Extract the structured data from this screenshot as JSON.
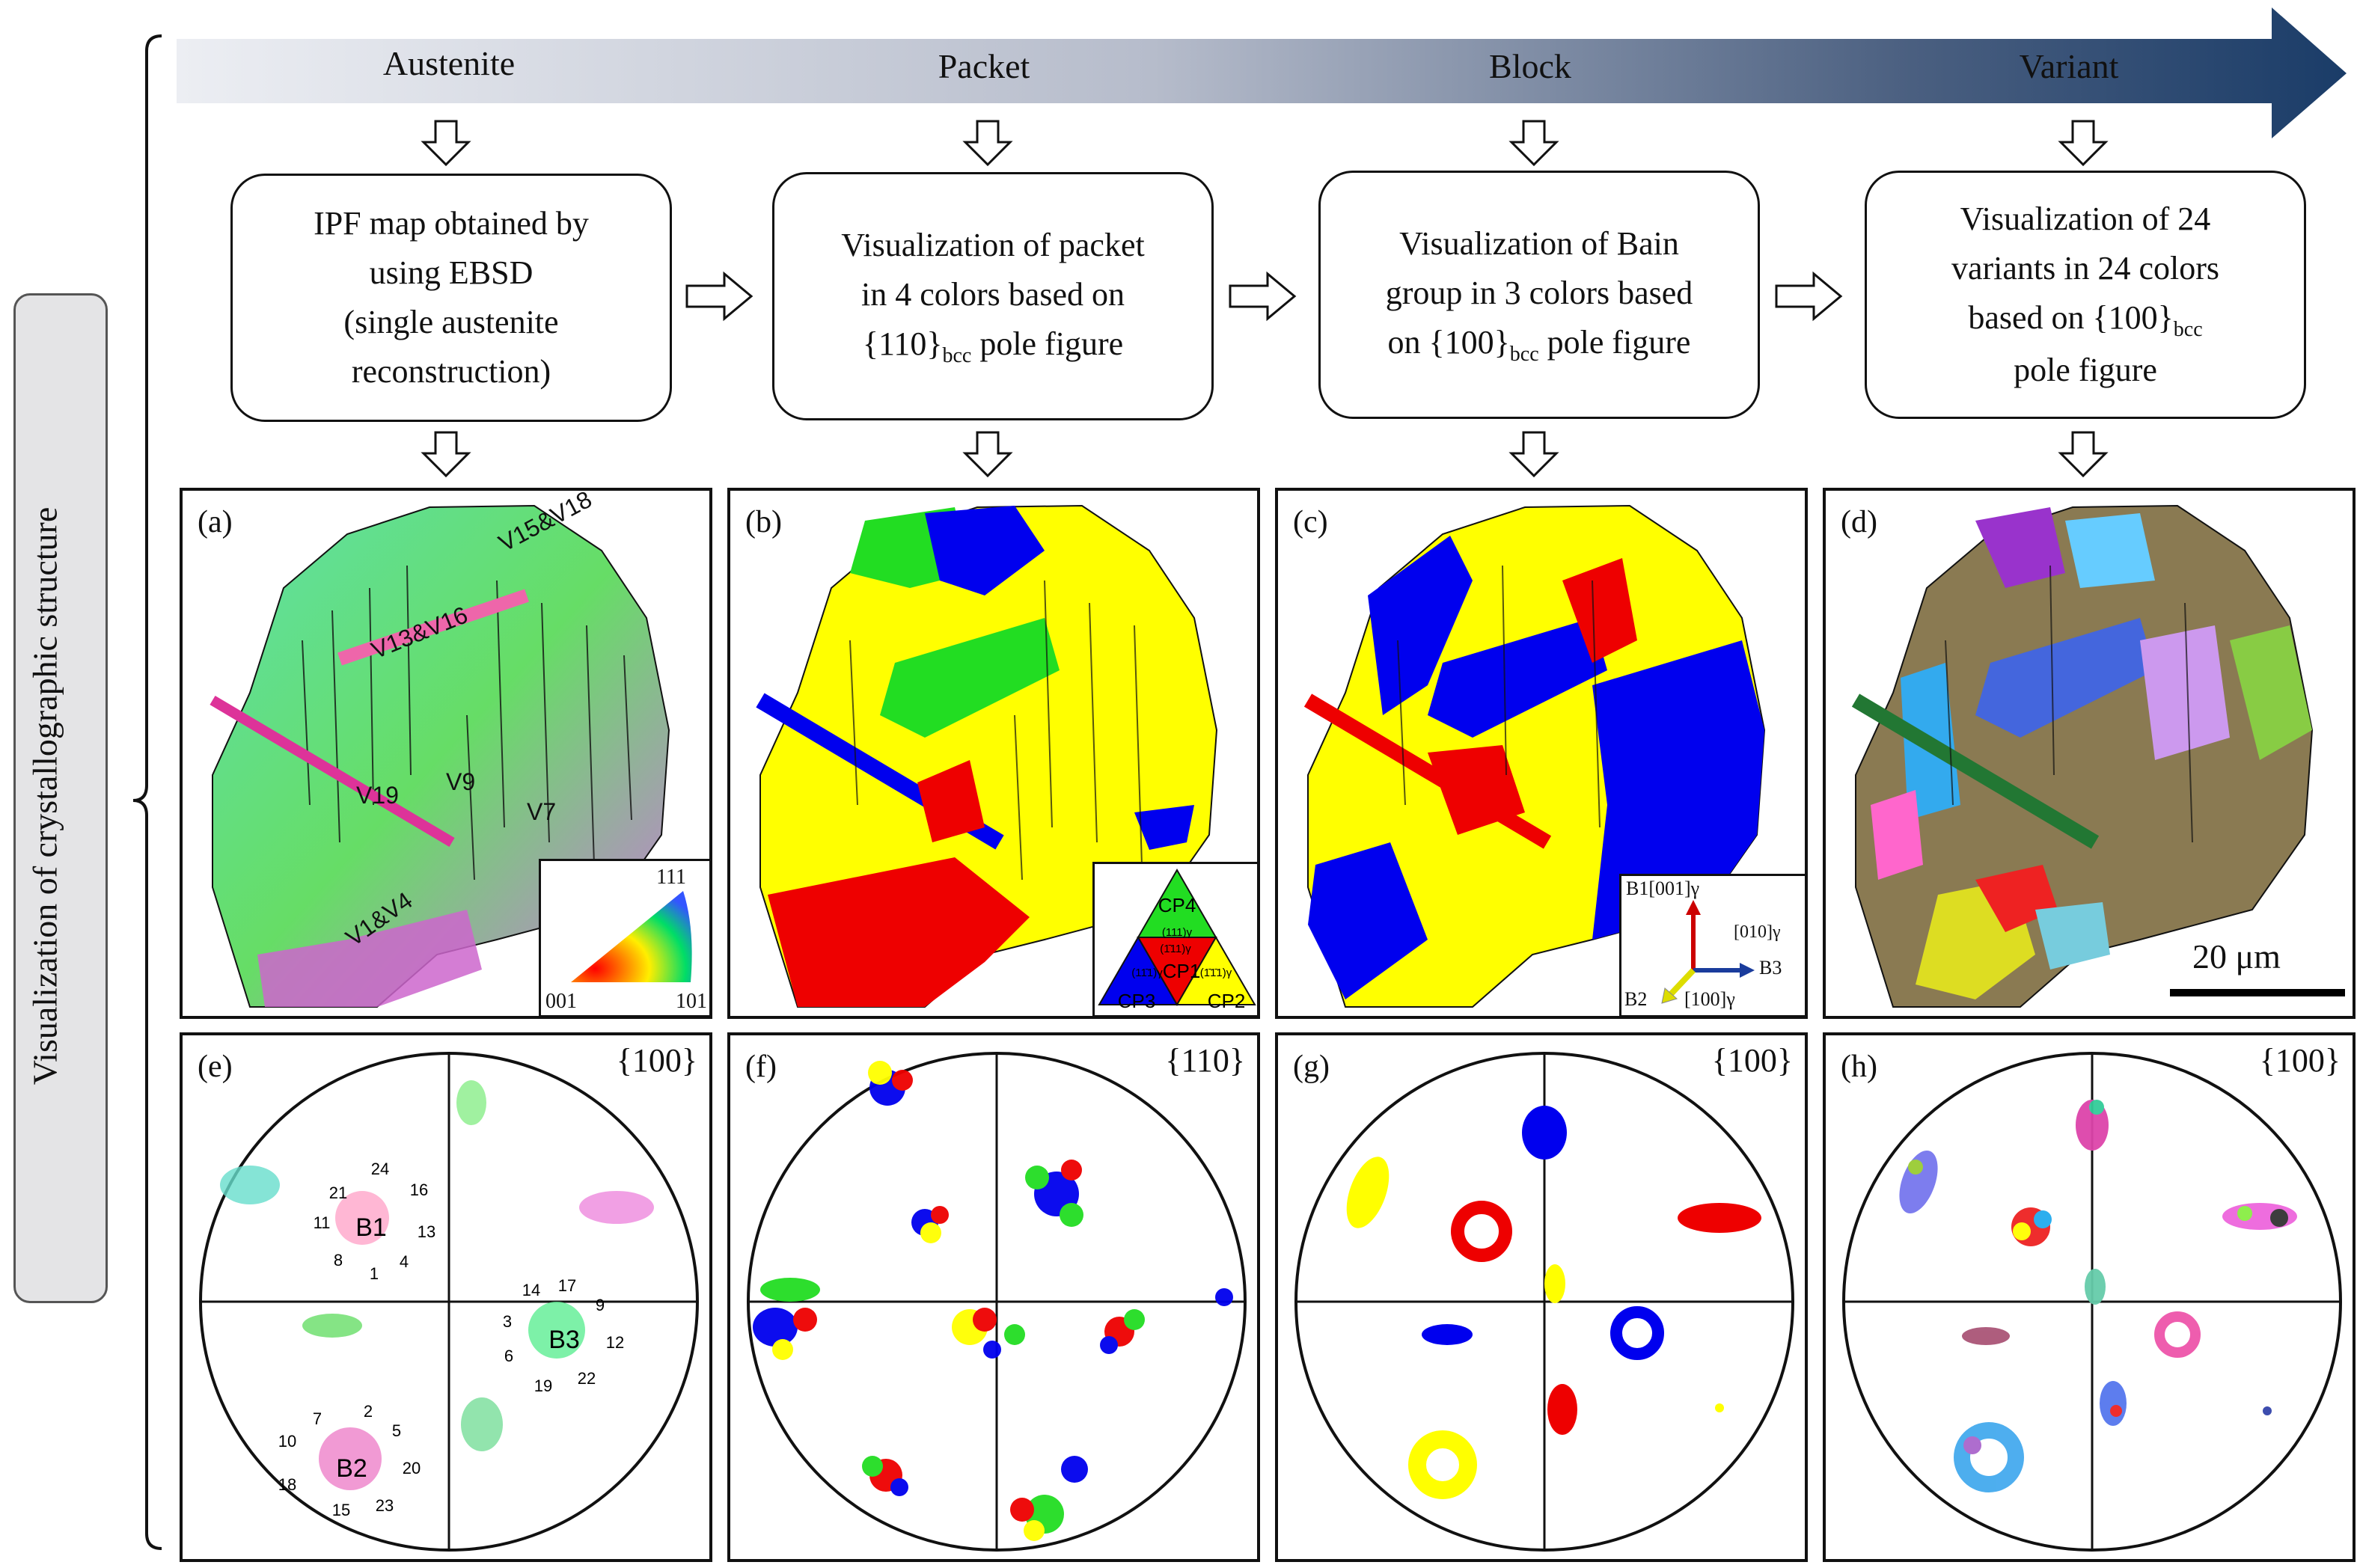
{
  "side_label": "Visualization of  crystallographic structure",
  "stages": [
    "Austenite",
    "Packet",
    "Block",
    "Variant"
  ],
  "boxes": [
    {
      "lines": [
        "IPF map obtained by",
        "using EBSD",
        "(single austenite",
        "reconstruction)"
      ]
    },
    {
      "lines": [
        "Visualization of packet",
        "in 4 colors based on"
      ],
      "brace": "{110}",
      "sub": "bcc",
      "tail": " pole figure"
    },
    {
      "lines": [
        "Visualization of Bain",
        "group in 3 colors based"
      ],
      "prefix": "on ",
      "brace": "{100}",
      "sub": "bcc",
      "tail": " pole figure"
    },
    {
      "lines": [
        "Visualization of 24",
        "variants in 24 colors"
      ],
      "prefix": "based on ",
      "brace": "{100}",
      "sub": "bcc",
      "line4": "pole figure"
    }
  ],
  "panels": {
    "a": {
      "label": "(a)",
      "annotations": [
        "V15&V18",
        "V13&V16",
        "V19",
        "V9",
        "V7",
        "V1&V4"
      ],
      "legend": {
        "top": "111",
        "left": "001",
        "right": "101"
      }
    },
    "b": {
      "label": "(b)",
      "legend": {
        "cp": [
          "CP4",
          "CP1",
          "CP3",
          "CP2"
        ],
        "planes": [
          "(111)γ",
          "(1̄11)γ",
          "(11̄1)γ",
          "(1̄1̄1)γ"
        ]
      }
    },
    "c": {
      "label": "(c)",
      "legend": {
        "b1": "B1[001]γ",
        "b3_dir": "[010]γ",
        "b3": "B3",
        "b2": "B2",
        "b2_dir": "[100]γ"
      }
    },
    "d": {
      "label": "(d)",
      "scale_bar": "20 μm"
    },
    "e": {
      "label": "(e)",
      "pole": "{100}",
      "centers": [
        "B1",
        "B2",
        "B3"
      ],
      "variants_b1": [
        "21",
        "24",
        "16",
        "11",
        "13",
        "8",
        "1",
        "4"
      ],
      "variants_b3": [
        "14",
        "17",
        "9",
        "3",
        "12",
        "6",
        "19",
        "22"
      ],
      "variants_b2": [
        "7",
        "2",
        "5",
        "10",
        "20",
        "18",
        "15",
        "23"
      ]
    },
    "f": {
      "label": "(f)",
      "pole": "{110}"
    },
    "g": {
      "label": "(g)",
      "pole": "{100}"
    },
    "h": {
      "label": "(h)",
      "pole": "{100}"
    }
  },
  "colors": {
    "green": "#22dd22",
    "yellow": "#ffff00",
    "blue": "#0000ee",
    "red": "#ee0000",
    "arrow_dark": "#1f3f6b",
    "arrow_light": "#e8eaf0"
  }
}
